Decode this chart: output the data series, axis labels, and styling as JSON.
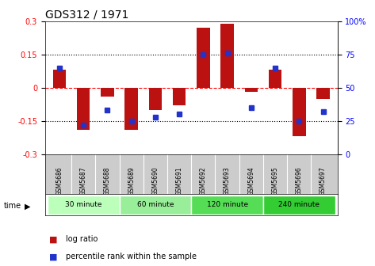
{
  "title": "GDS312 / 1971",
  "samples": [
    "GSM5686",
    "GSM5687",
    "GSM5688",
    "GSM5689",
    "GSM5690",
    "GSM5691",
    "GSM5692",
    "GSM5693",
    "GSM5694",
    "GSM5695",
    "GSM5696",
    "GSM5697"
  ],
  "log_ratio": [
    0.08,
    -0.19,
    -0.04,
    -0.19,
    -0.1,
    -0.08,
    0.27,
    0.29,
    -0.02,
    0.08,
    -0.22,
    -0.05
  ],
  "percentile": [
    65,
    22,
    33,
    25,
    28,
    30,
    75,
    76,
    35,
    65,
    25,
    32
  ],
  "group_defs": [
    {
      "label": "30 minute",
      "bars": [
        0,
        1,
        2
      ],
      "color": "#bbffbb"
    },
    {
      "label": "60 minute",
      "bars": [
        3,
        4,
        5
      ],
      "color": "#99ee99"
    },
    {
      "label": "120 minute",
      "bars": [
        6,
        7,
        8
      ],
      "color": "#55dd55"
    },
    {
      "label": "240 minute",
      "bars": [
        9,
        10,
        11
      ],
      "color": "#33cc33"
    }
  ],
  "bar_color": "#bb1111",
  "dot_color": "#2233cc",
  "ylim_left": [
    -0.3,
    0.3
  ],
  "ylim_right": [
    0,
    100
  ],
  "yticks_left": [
    -0.3,
    -0.15,
    0,
    0.15,
    0.3
  ],
  "yticks_right": [
    0,
    25,
    50,
    75,
    100
  ],
  "hlines_dotted": [
    -0.15,
    0.15
  ],
  "hline_dashed": 0,
  "bg_color": "#ffffff",
  "title_fontsize": 10,
  "tick_bg_color": "#cccccc"
}
